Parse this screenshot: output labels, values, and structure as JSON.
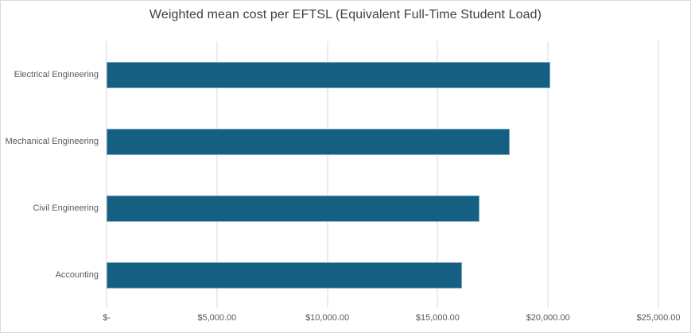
{
  "chart_data": {
    "type": "bar",
    "orientation": "horizontal",
    "title": "Weighted mean cost per EFTSL (Equivalent Full-Time Student Load)",
    "categories": [
      "Electrical Engineering",
      "Mechanical Engineering",
      "Civil Engineering",
      "Accounting"
    ],
    "values": [
      20100,
      18250,
      16900,
      16100
    ],
    "xlabel": "",
    "ylabel": "",
    "xlim": [
      0,
      25000
    ],
    "x_ticks": [
      0,
      5000,
      10000,
      15000,
      20000,
      25000
    ],
    "x_tick_labels": [
      "$-",
      "$5,000.00",
      "$10,000.00",
      "$15,000.00",
      "$20,000.00",
      "$25,000.00"
    ],
    "grid": true,
    "legend": false,
    "colors": {
      "bar": "#156082",
      "gridline": "#d9d9d9",
      "axis_text": "#595959",
      "title_text": "#404040",
      "chart_border": "#d9d9d9",
      "background": "#ffffff"
    }
  }
}
